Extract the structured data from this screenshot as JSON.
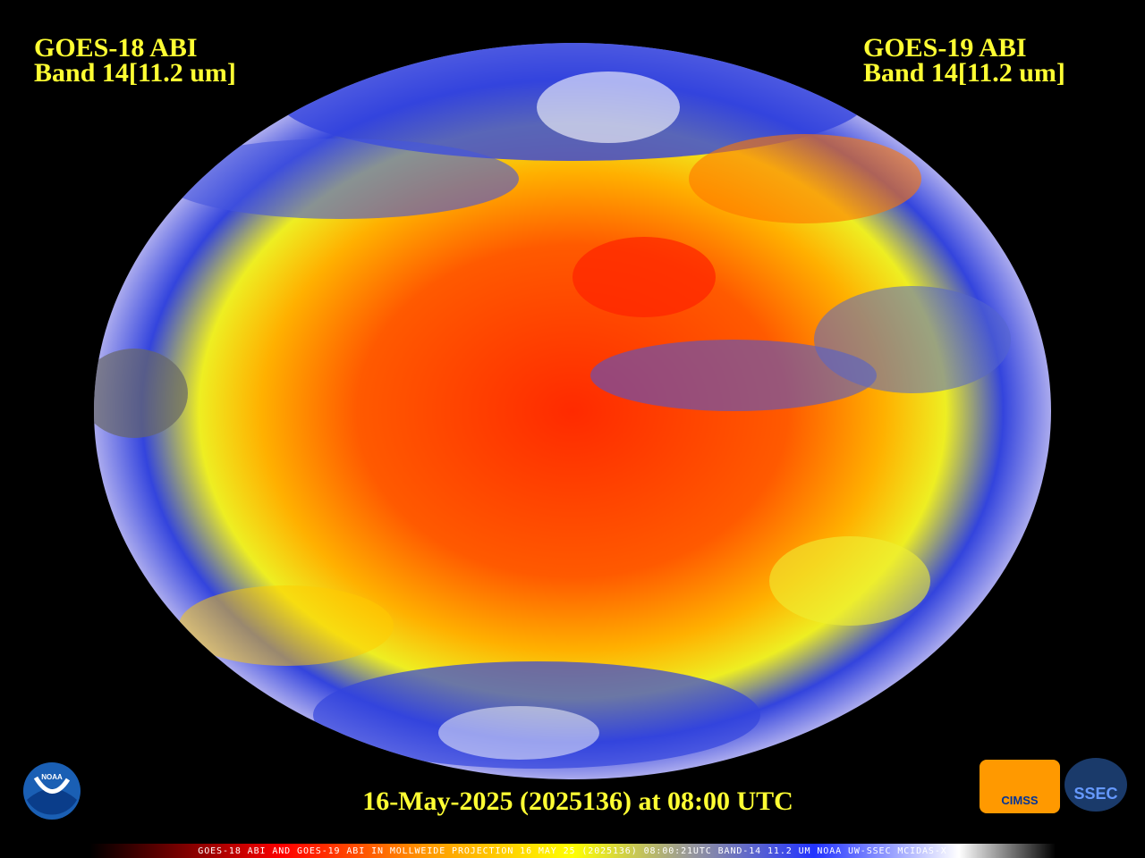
{
  "left_label": {
    "line1": "GOES-18 ABI",
    "line2": "Band 14[11.2 um]"
  },
  "right_label": {
    "line1": "GOES-19 ABI",
    "line2": "Band 14[11.2 um]"
  },
  "timestamp": "16-May-2025 (2025136) at 08:00 UTC",
  "footer": "GOES-18 ABI AND GOES-19 ABI IN MOLLWEIDE PROJECTION 16 MAY 25 (2025136) 08:00:21UTC BAND-14 11.2 UM NOAA UW-SSEC MCIDAS-X",
  "logos": {
    "noaa": "NOAA",
    "cimss": "CIMSS",
    "ssec": "SSEC"
  }
}
